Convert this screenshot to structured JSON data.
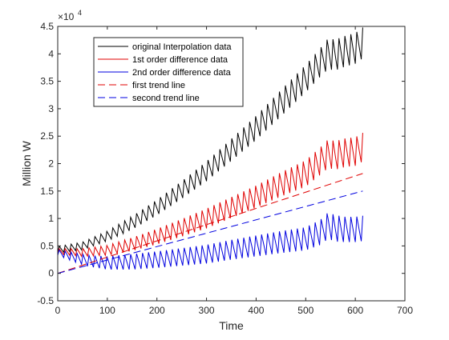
{
  "chart_data": {
    "type": "line",
    "title": "",
    "xlabel": "Time",
    "ylabel": "Million W",
    "xlim": [
      0,
      700
    ],
    "ylim": [
      -5000,
      45000
    ],
    "xticks": [
      0,
      100,
      200,
      300,
      400,
      500,
      600,
      700
    ],
    "yticks": [
      -5000,
      0,
      5000,
      10000,
      15000,
      20000,
      25000,
      30000,
      35000,
      40000,
      45000
    ],
    "ytick_labels": [
      "-0.5",
      "0",
      "0.5",
      "1",
      "1.5",
      "2",
      "2.5",
      "3",
      "3.5",
      "4",
      "4.5"
    ],
    "y_exponent_base": "×10",
    "y_exponent_power": "4",
    "legend_position": "upper-left",
    "grid": false,
    "seasonal_period": 12,
    "series": [
      {
        "name": "original Interpolation data",
        "style": "solid",
        "color": "#000000",
        "anchors_x": [
          0,
          50,
          100,
          150,
          200,
          250,
          300,
          350,
          400,
          450,
          500,
          530,
          545,
          560,
          580,
          600,
          615
        ],
        "anchors_y": [
          4300,
          5000,
          6800,
          9200,
          12000,
          15200,
          18600,
          22500,
          26500,
          31000,
          35500,
          38500,
          40000,
          39800,
          40500,
          41000,
          42000
        ],
        "seasonal_amplitude": [
          600,
          700,
          900,
          1200,
          1400,
          1600,
          1800,
          2000,
          2200,
          2400,
          2500,
          2600,
          2800,
          2800,
          2800,
          2800,
          2800
        ]
      },
      {
        "name": "1st order difference data",
        "style": "solid",
        "color": "#e00000",
        "anchors_x": [
          0,
          50,
          100,
          150,
          200,
          250,
          300,
          350,
          400,
          450,
          500,
          530,
          545,
          560,
          580,
          600,
          615
        ],
        "anchors_y": [
          4000,
          3800,
          4200,
          5300,
          6700,
          8300,
          10000,
          12000,
          14000,
          16200,
          18200,
          20500,
          21800,
          21500,
          22000,
          22200,
          23000
        ],
        "seasonal_amplitude": [
          500,
          700,
          900,
          1200,
          1400,
          1600,
          1800,
          1900,
          2000,
          2200,
          2400,
          2500,
          2600,
          2600,
          2600,
          2600,
          2600
        ]
      },
      {
        "name": "2nd order difference data",
        "style": "solid",
        "color": "#0000e0",
        "anchors_x": [
          0,
          30,
          60,
          100,
          150,
          200,
          250,
          300,
          350,
          400,
          450,
          500,
          530,
          545,
          560,
          580,
          600,
          615
        ],
        "anchors_y": [
          3800,
          3000,
          2300,
          1900,
          2100,
          2500,
          3000,
          3500,
          4300,
          5000,
          5700,
          6300,
          7500,
          8700,
          8200,
          8000,
          8000,
          8200
        ],
        "seasonal_amplitude": [
          500,
          800,
          1000,
          1200,
          1400,
          1500,
          1600,
          1700,
          1800,
          1900,
          2000,
          2100,
          2300,
          2400,
          2400,
          2300,
          2300,
          2300
        ]
      },
      {
        "name": "first trend line",
        "style": "dashed",
        "color": "#e00000",
        "x": [
          0,
          615
        ],
        "y": [
          0,
          18200
        ]
      },
      {
        "name": "second trend line",
        "style": "dashed",
        "color": "#0000e0",
        "x": [
          0,
          615
        ],
        "y": [
          0,
          15000
        ]
      }
    ]
  }
}
